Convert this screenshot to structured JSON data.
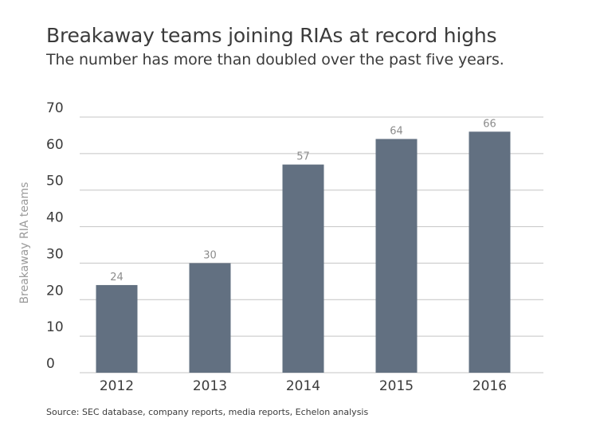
{
  "header": {
    "title": "Breakaway teams joining RIAs at record highs",
    "subtitle": "The number has more than doubled over the past five years."
  },
  "source": "Source: SEC database, company reports, media reports, Echelon analysis",
  "colors": {
    "bar": "#627081",
    "grid": "#c4c4c4",
    "axis_text": "#3b3b3b",
    "label_text": "#8c8c8c",
    "ylabel_text": "#9a9a9a"
  },
  "chart_data": {
    "type": "bar",
    "categories": [
      "2012",
      "2013",
      "2014",
      "2015",
      "2016"
    ],
    "values": [
      24,
      30,
      57,
      64,
      66
    ],
    "title": "Breakaway teams joining RIAs at record highs",
    "subtitle": "The number has more than doubled over the past five years.",
    "xlabel": "",
    "ylabel": "Breakaway RIA teams",
    "ylim": [
      0,
      70
    ],
    "yticks": [
      0,
      10,
      20,
      30,
      40,
      50,
      60,
      70
    ],
    "grid": true,
    "data_labels": true
  }
}
